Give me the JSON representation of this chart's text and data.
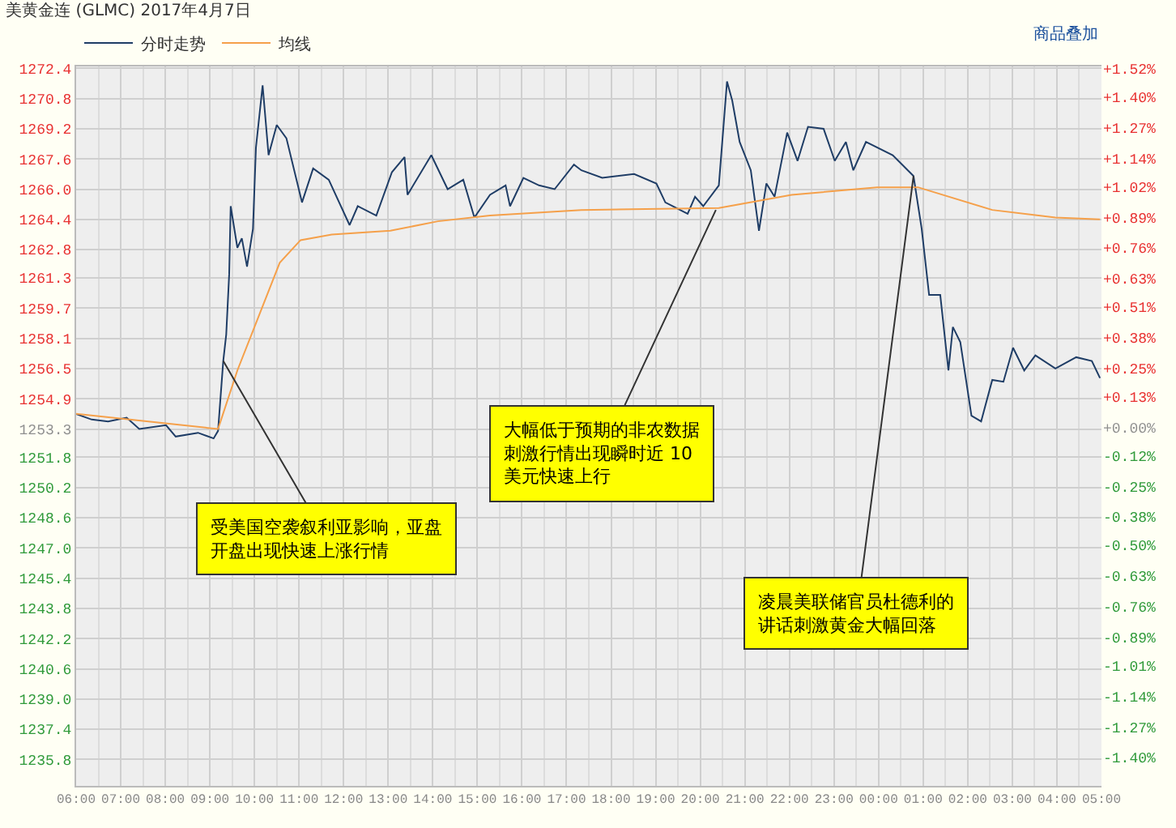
{
  "chart_data": {
    "type": "line",
    "title": "美黄金连 (GLMC) 2017年4月7日",
    "x": [
      "2017-04-07T06:00",
      "2017-04-07T06:21",
      "2017-04-07T06:43",
      "2017-04-07T07:08",
      "2017-04-07T07:25",
      "2017-04-07T08:01",
      "2017-04-07T08:14",
      "2017-04-07T08:44",
      "2017-04-07T09:05",
      "2017-04-07T09:11",
      "2017-04-07T09:18",
      "2017-04-07T09:22",
      "2017-04-07T09:26",
      "2017-04-07T09:28",
      "2017-04-07T09:37",
      "2017-04-07T09:43",
      "2017-04-07T09:50",
      "2017-04-07T09:58",
      "2017-04-07T10:02",
      "2017-04-07T10:11",
      "2017-04-07T10:19",
      "2017-04-07T10:30",
      "2017-04-07T10:43",
      "2017-04-07T11:04",
      "2017-04-07T11:19",
      "2017-04-07T11:40",
      "2017-04-07T12:08",
      "2017-04-07T12:19",
      "2017-04-07T12:44",
      "2017-04-07T13:05",
      "2017-04-07T13:22",
      "2017-04-07T13:26",
      "2017-04-07T13:58",
      "2017-04-07T14:20",
      "2017-04-07T14:41",
      "2017-04-07T14:56",
      "2017-04-07T15:17",
      "2017-04-07T15:38",
      "2017-04-07T15:44",
      "2017-04-07T16:02",
      "2017-04-07T16:23",
      "2017-04-07T16:44",
      "2017-04-07T17:10",
      "2017-04-07T17:20",
      "2017-04-07T17:48",
      "2017-04-07T18:31",
      "2017-04-07T19:01",
      "2017-04-07T19:13",
      "2017-04-07T19:43",
      "2017-04-07T19:53",
      "2017-04-07T20:04",
      "2017-04-07T20:25",
      "2017-04-07T20:36",
      "2017-04-07T20:43",
      "2017-04-07T20:53",
      "2017-04-07T21:08",
      "2017-04-07T21:19",
      "2017-04-07T21:29",
      "2017-04-07T21:40",
      "2017-04-07T21:57",
      "2017-04-07T22:11",
      "2017-04-07T22:25",
      "2017-04-07T22:46",
      "2017-04-07T23:01",
      "2017-04-07T23:16",
      "2017-04-07T23:26",
      "2017-04-07T23:43",
      "2017-04-08T00:19",
      "2017-04-08T00:47",
      "2017-04-08T00:58",
      "2017-04-08T01:08",
      "2017-04-08T01:23",
      "2017-04-08T01:34",
      "2017-04-08T01:40",
      "2017-04-08T01:50",
      "2017-04-08T02:05",
      "2017-04-08T02:18",
      "2017-04-08T02:33",
      "2017-04-08T02:48",
      "2017-04-08T03:01",
      "2017-04-08T03:16",
      "2017-04-08T03:31",
      "2017-04-08T03:58",
      "2017-04-08T04:26",
      "2017-04-08T04:47",
      "2017-04-08T04:58"
    ],
    "series": [
      {
        "name": "分时走势",
        "color": "#1f3d66",
        "values": [
          1254.1,
          1253.8,
          1253.7,
          1253.9,
          1253.3,
          1253.5,
          1252.9,
          1253.1,
          1252.8,
          1253.2,
          1256.9,
          1258.3,
          1261.5,
          1265.1,
          1262.9,
          1263.4,
          1261.9,
          1263.9,
          1268.2,
          1271.5,
          1267.8,
          1269.4,
          1268.7,
          1265.3,
          1267.1,
          1266.5,
          1264.1,
          1265.1,
          1264.6,
          1266.9,
          1267.7,
          1265.7,
          1267.8,
          1266.0,
          1266.5,
          1264.5,
          1265.7,
          1266.2,
          1265.1,
          1266.6,
          1266.2,
          1266.0,
          1267.3,
          1267.0,
          1266.6,
          1266.8,
          1266.3,
          1265.3,
          1264.7,
          1265.6,
          1265.1,
          1266.2,
          1271.7,
          1270.7,
          1268.5,
          1267.0,
          1263.8,
          1266.3,
          1265.6,
          1269.0,
          1267.5,
          1269.3,
          1269.2,
          1267.5,
          1268.5,
          1267.0,
          1268.5,
          1267.8,
          1266.7,
          1263.9,
          1260.4,
          1260.4,
          1256.4,
          1258.7,
          1257.9,
          1254.0,
          1253.7,
          1255.9,
          1255.8,
          1257.6,
          1256.4,
          1257.2,
          1256.5,
          1257.1,
          1256.9,
          1256.0
        ]
      },
      {
        "name": "均线",
        "color": "#f5a04a",
        "x": [
          "2017-04-07T06:00",
          "2017-04-07T09:11",
          "2017-04-07T09:37",
          "2017-04-07T10:04",
          "2017-04-07T10:34",
          "2017-04-07T11:02",
          "2017-04-07T11:44",
          "2017-04-07T13:03",
          "2017-04-07T14:07",
          "2017-04-07T15:17",
          "2017-04-07T17:20",
          "2017-04-07T20:25",
          "2017-04-07T22:03",
          "2017-04-07T23:58",
          "2017-04-08T00:53",
          "2017-04-08T02:33",
          "2017-04-08T03:58",
          "2017-04-08T04:58"
        ],
        "values": [
          1254.1,
          1253.3,
          1256.4,
          1259.1,
          1262.1,
          1263.3,
          1263.6,
          1263.8,
          1264.3,
          1264.6,
          1264.9,
          1265.0,
          1265.7,
          1266.1,
          1266.1,
          1264.9,
          1264.5,
          1264.4
        ]
      }
    ],
    "xlim": [
      "2017-04-07T06:00",
      "2017-04-08T05:00"
    ],
    "xticks": [
      {
        "value": "2017-04-07T06:00",
        "label": "06:00"
      },
      {
        "value": "2017-04-07T07:00",
        "label": "07:00"
      },
      {
        "value": "2017-04-07T08:00",
        "label": "08:00"
      },
      {
        "value": "2017-04-07T09:00",
        "label": "09:00"
      },
      {
        "value": "2017-04-07T10:00",
        "label": "10:00"
      },
      {
        "value": "2017-04-07T11:00",
        "label": "11:00"
      },
      {
        "value": "2017-04-07T12:00",
        "label": "12:00"
      },
      {
        "value": "2017-04-07T13:00",
        "label": "13:00"
      },
      {
        "value": "2017-04-07T14:00",
        "label": "14:00"
      },
      {
        "value": "2017-04-07T15:00",
        "label": "15:00"
      },
      {
        "value": "2017-04-07T16:00",
        "label": "16:00"
      },
      {
        "value": "2017-04-07T17:00",
        "label": "17:00"
      },
      {
        "value": "2017-04-07T18:00",
        "label": "18:00"
      },
      {
        "value": "2017-04-07T19:00",
        "label": "19:00"
      },
      {
        "value": "2017-04-07T20:00",
        "label": "20:00"
      },
      {
        "value": "2017-04-07T21:00",
        "label": "21:00"
      },
      {
        "value": "2017-04-07T22:00",
        "label": "22:00"
      },
      {
        "value": "2017-04-07T23:00",
        "label": "23:00"
      },
      {
        "value": "2017-04-08T00:00",
        "label": "00:00"
      },
      {
        "value": "2017-04-08T01:00",
        "label": "01:00"
      },
      {
        "value": "2017-04-08T02:00",
        "label": "02:00"
      },
      {
        "value": "2017-04-08T03:00",
        "label": "03:00"
      },
      {
        "value": "2017-04-08T04:00",
        "label": "04:00"
      },
      {
        "value": "2017-04-08T05:00",
        "label": "05:00"
      }
    ],
    "ylim": [
      1234.4,
      1272.5
    ],
    "yticks": [
      {
        "value": 1272.4,
        "label": "1272.4"
      },
      {
        "value": 1270.8,
        "label": "1270.8"
      },
      {
        "value": 1269.2,
        "label": "1269.2"
      },
      {
        "value": 1267.6,
        "label": "1267.6"
      },
      {
        "value": 1266.0,
        "label": "1266.0"
      },
      {
        "value": 1264.4,
        "label": "1264.4"
      },
      {
        "value": 1262.8,
        "label": "1262.8"
      },
      {
        "value": 1261.3,
        "label": "1261.3"
      },
      {
        "value": 1259.7,
        "label": "1259.7"
      },
      {
        "value": 1258.1,
        "label": "1258.1"
      },
      {
        "value": 1256.5,
        "label": "1256.5"
      },
      {
        "value": 1254.9,
        "label": "1254.9"
      },
      {
        "value": 1253.3,
        "label": "1253.3"
      },
      {
        "value": 1251.8,
        "label": "1251.8"
      },
      {
        "value": 1250.2,
        "label": "1250.2"
      },
      {
        "value": 1248.6,
        "label": "1248.6"
      },
      {
        "value": 1247.0,
        "label": "1247.0"
      },
      {
        "value": 1245.4,
        "label": "1245.4"
      },
      {
        "value": 1243.8,
        "label": "1243.8"
      },
      {
        "value": 1242.2,
        "label": "1242.2"
      },
      {
        "value": 1240.6,
        "label": "1240.6"
      },
      {
        "value": 1239.0,
        "label": "1239.0"
      },
      {
        "value": 1237.4,
        "label": "1237.4"
      },
      {
        "value": 1235.8,
        "label": "1235.8"
      }
    ],
    "y2lim": [
      -1.52,
      1.53
    ],
    "y2ticks": [
      {
        "value": 1.52,
        "label": "+1.52%"
      },
      {
        "value": 1.4,
        "label": "+1.40%"
      },
      {
        "value": 1.27,
        "label": "+1.27%"
      },
      {
        "value": 1.14,
        "label": "+1.14%"
      },
      {
        "value": 1.02,
        "label": "+1.02%"
      },
      {
        "value": 0.89,
        "label": "+0.89%"
      },
      {
        "value": 0.76,
        "label": "+0.76%"
      },
      {
        "value": 0.63,
        "label": "+0.63%"
      },
      {
        "value": 0.51,
        "label": "+0.51%"
      },
      {
        "value": 0.38,
        "label": "+0.38%"
      },
      {
        "value": 0.25,
        "label": "+0.25%"
      },
      {
        "value": 0.13,
        "label": "+0.13%"
      },
      {
        "value": 0.0,
        "label": "+0.00%"
      },
      {
        "value": -0.12,
        "label": "-0.12%"
      },
      {
        "value": -0.25,
        "label": "-0.25%"
      },
      {
        "value": -0.38,
        "label": "-0.38%"
      },
      {
        "value": -0.5,
        "label": "-0.50%"
      },
      {
        "value": -0.63,
        "label": "-0.63%"
      },
      {
        "value": -0.76,
        "label": "-0.76%"
      },
      {
        "value": -0.89,
        "label": "-0.89%"
      },
      {
        "value": -1.01,
        "label": "-1.01%"
      },
      {
        "value": -1.14,
        "label": "-1.14%"
      },
      {
        "value": -1.27,
        "label": "-1.27%"
      },
      {
        "value": -1.4,
        "label": "-1.40%"
      }
    ],
    "annotations": [
      "商品叠加",
      {
        "text": "受美国空袭叙利亚影响，亚盘开盘出现快速上涨行情",
        "x": "2017-04-07T09:18",
        "y": 1256.9
      },
      {
        "text": "大幅低于预期的非农数据刺激行情出现瞬时近 10美元快速上行",
        "x": "2017-04-07T20:21",
        "y": 1264.9
      },
      {
        "text": "凌晨美联储官员杜德利的讲话刺激黄金大幅回落",
        "x": "2017-04-08T00:47",
        "y": 1266.7
      }
    ],
    "grid": true,
    "legend": "top left",
    "marker": "none",
    "line_style": "solid"
  }
}
